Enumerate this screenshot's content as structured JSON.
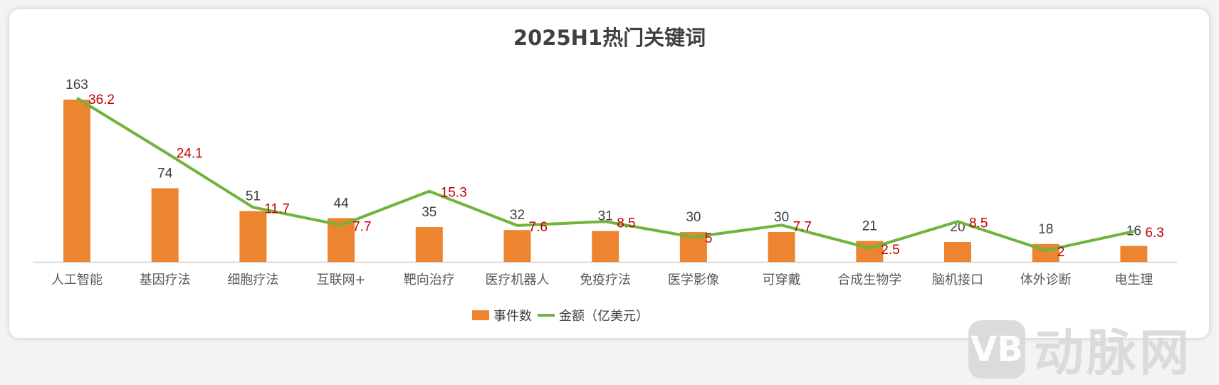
{
  "chart_data": {
    "type": "bar+line",
    "title": "2025H1热门关键词",
    "categories": [
      "人工智能",
      "基因疗法",
      "细胞疗法",
      "互联网+",
      "靶向治疗",
      "医疗机器人",
      "免疫疗法",
      "医学影像",
      "可穿戴",
      "合成生物学",
      "脑机接口",
      "体外诊断",
      "电生理"
    ],
    "series": [
      {
        "name": "事件数",
        "type": "bar",
        "color": "#ED8530",
        "values": [
          163,
          74,
          51,
          44,
          35,
          32,
          31,
          30,
          30,
          21,
          20,
          18,
          16
        ]
      },
      {
        "name": "金额（亿美元）",
        "type": "line",
        "color": "#70B43C",
        "label_color": "#C00000",
        "values": [
          36.2,
          24.1,
          11.7,
          7.7,
          15.3,
          7.6,
          8.5,
          5,
          7.7,
          2.5,
          8.5,
          2,
          6.3
        ]
      }
    ],
    "xlabel": "",
    "ylabel": "",
    "grid": false,
    "legend_position": "bottom"
  },
  "legend": {
    "bar_label": "事件数",
    "line_label": "金额（亿美元）"
  },
  "watermark": {
    "logo": "VB",
    "text": "动脉网"
  }
}
